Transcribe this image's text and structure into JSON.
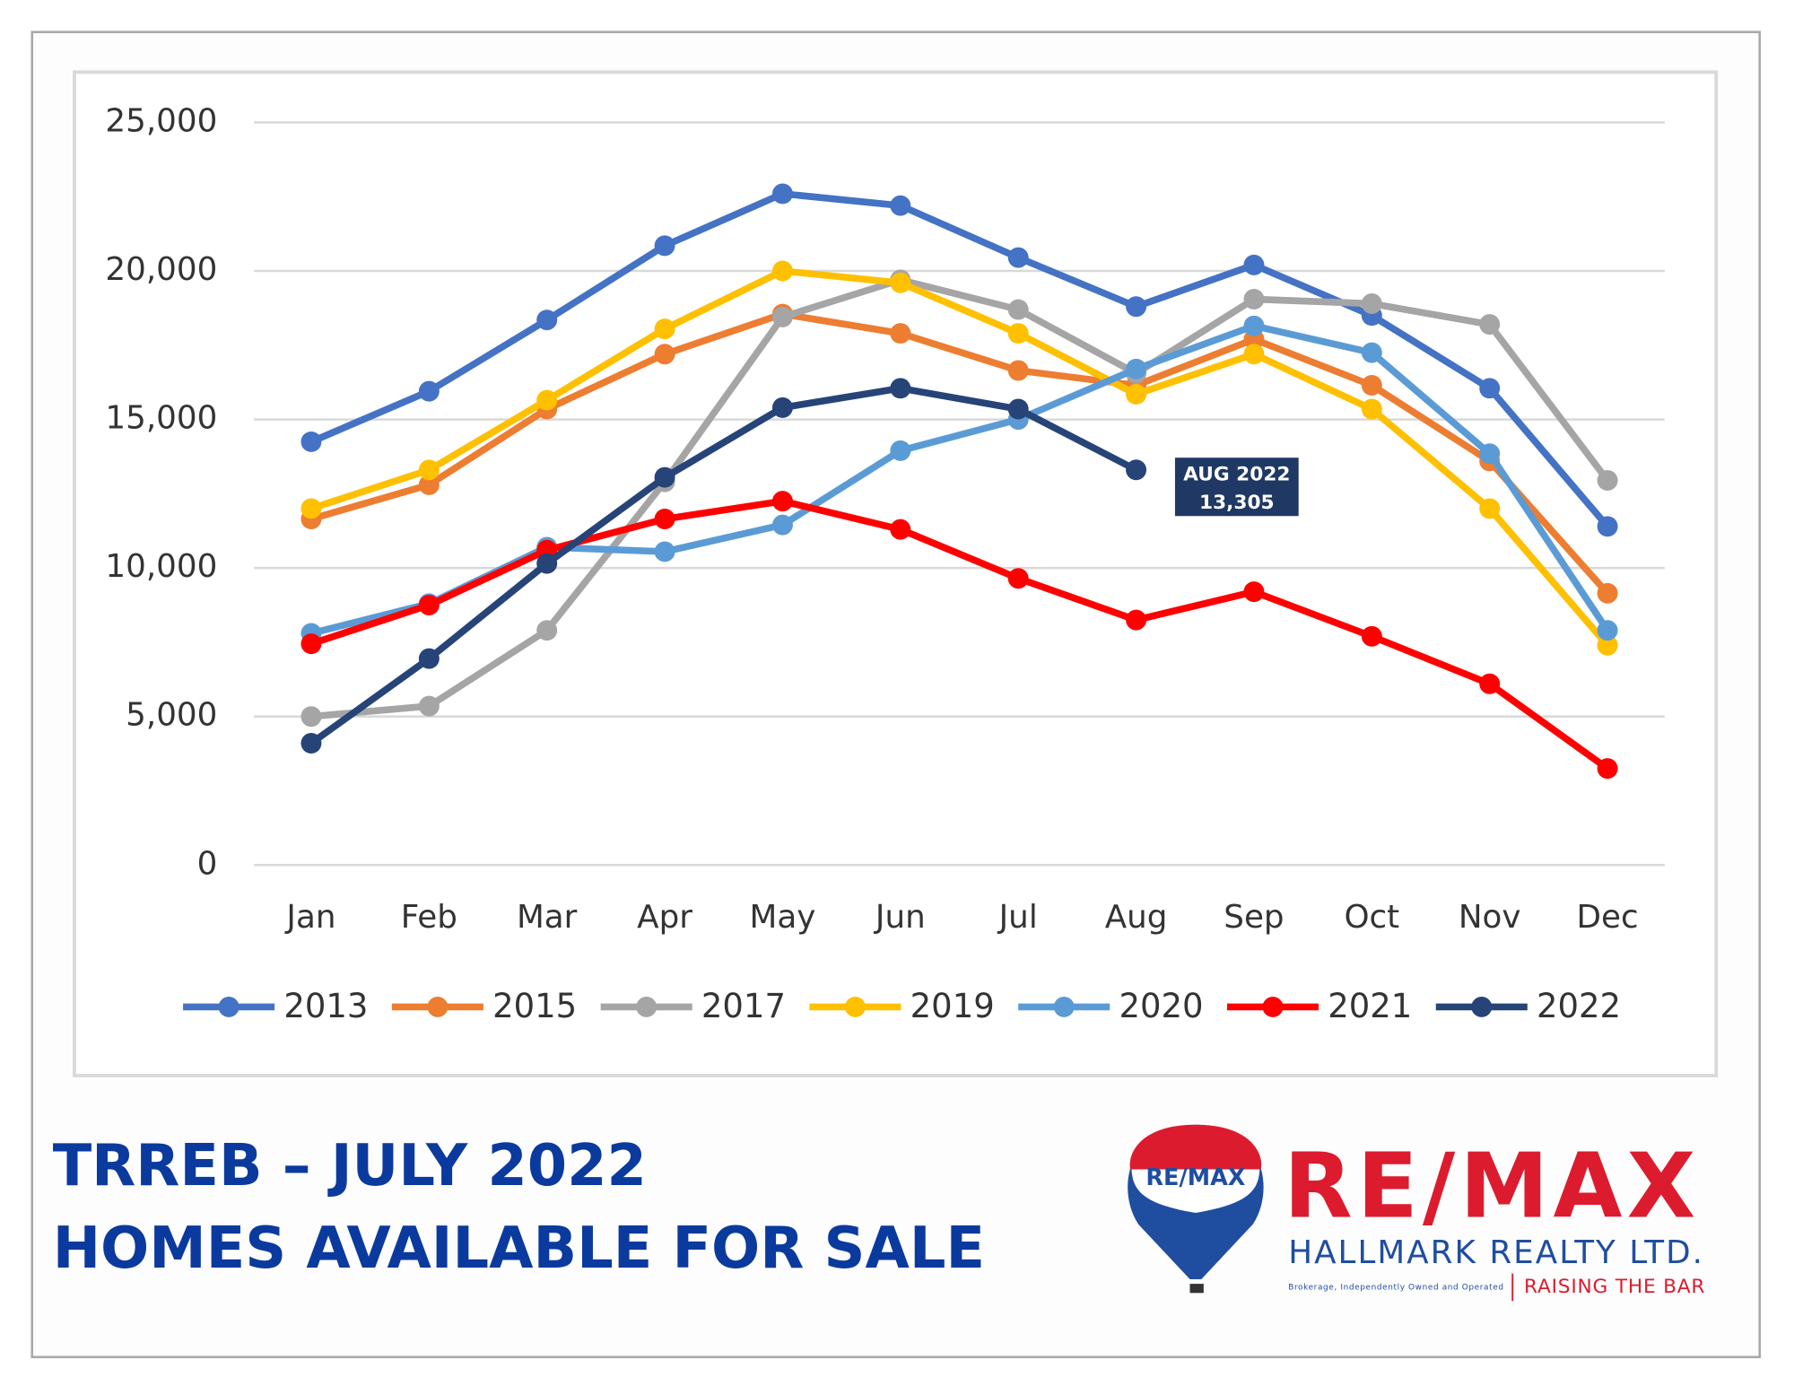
{
  "chart_data": {
    "type": "line",
    "categories": [
      "Jan",
      "Feb",
      "Mar",
      "Apr",
      "May",
      "Jun",
      "Jul",
      "Aug",
      "Sep",
      "Oct",
      "Nov",
      "Dec"
    ],
    "series": [
      {
        "name": "2013",
        "color": "#4472c4",
        "values": [
          14250,
          15950,
          18350,
          20850,
          22600,
          22200,
          20450,
          18800,
          20200,
          18500,
          16050,
          11400
        ]
      },
      {
        "name": "2015",
        "color": "#ed7d31",
        "values": [
          11650,
          12800,
          15350,
          17200,
          18550,
          17900,
          16650,
          16150,
          17700,
          16150,
          13600,
          9150
        ]
      },
      {
        "name": "2017",
        "color": "#a5a5a5",
        "values": [
          5000,
          5350,
          7900,
          12900,
          18450,
          19700,
          18700,
          16550,
          19050,
          18900,
          18200,
          12950
        ]
      },
      {
        "name": "2019",
        "color": "#ffc000",
        "values": [
          12000,
          13300,
          15650,
          18050,
          20000,
          19600,
          17900,
          15850,
          17200,
          15350,
          12000,
          7400
        ]
      },
      {
        "name": "2020",
        "color": "#5b9bd5",
        "values": [
          7800,
          8800,
          10700,
          10550,
          11450,
          13950,
          15000,
          16700,
          18150,
          17250,
          13850,
          7900
        ]
      },
      {
        "name": "2021",
        "color": "#ff0000",
        "values": [
          7450,
          8750,
          10600,
          11650,
          12250,
          11300,
          9650,
          8250,
          9200,
          7700,
          6100,
          3250
        ]
      },
      {
        "name": "2022",
        "color": "#264478",
        "values": [
          4100,
          6950,
          10150,
          13050,
          15400,
          16050,
          15350,
          13305,
          null,
          null,
          null,
          null
        ]
      }
    ],
    "ylim": [
      0,
      25000
    ],
    "yticks": [
      0,
      {
        "value": 5000,
        "label": "5,000"
      },
      {
        "value": 10000,
        "label": "10,000"
      },
      {
        "value": 15000,
        "label": "15,000"
      },
      {
        "value": 20000,
        "label": "20,000"
      },
      {
        "value": 25000,
        "label": "25,000"
      }
    ],
    "grid": true,
    "legend": "bottom",
    "annotation": [
      "AUG 2022",
      "13,305"
    ]
  },
  "footer": {
    "title_lines": [
      "TRREB – JULY 2022",
      "HOMES AVAILABLE FOR SALE"
    ]
  },
  "logo": {
    "balloon_text": "RE/MAX",
    "brand": "RE/MAX",
    "company": "HALLMARK REALTY LTD.",
    "disclaimer": "Brokerage, Independently Owned and Operated",
    "tagline": "RAISING THE BAR"
  }
}
